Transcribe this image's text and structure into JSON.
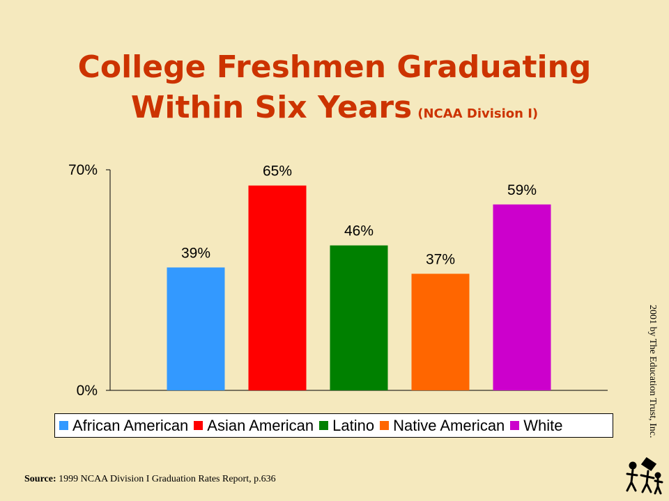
{
  "chart_data": {
    "type": "bar",
    "title": "College Freshmen Graduating Within Six Years",
    "subtitle": "(NCAA Division I)",
    "categories": [
      "African American",
      "Asian American",
      "Latino",
      "Native American",
      "White"
    ],
    "values": [
      39,
      65,
      46,
      37,
      59
    ],
    "data_labels": [
      "39%",
      "65%",
      "46%",
      "37%",
      "59%"
    ],
    "colors": [
      "#3399ff",
      "#ff0000",
      "#008000",
      "#ff6600",
      "#cc00cc"
    ],
    "ylim": [
      0,
      70
    ],
    "y_tick_labels": [
      "0%",
      "70%"
    ],
    "xlabel": "",
    "ylabel": "",
    "grid": false,
    "legend_position": "bottom"
  },
  "footer": {
    "source_label": "Source:",
    "source_text": "1999 NCAA Division I Graduation Rates Report, p.636",
    "copyright": "2001 by The Education Trust, Inc."
  },
  "logo": {
    "icon": "education-trust-logo-icon",
    "color": "#000000"
  }
}
